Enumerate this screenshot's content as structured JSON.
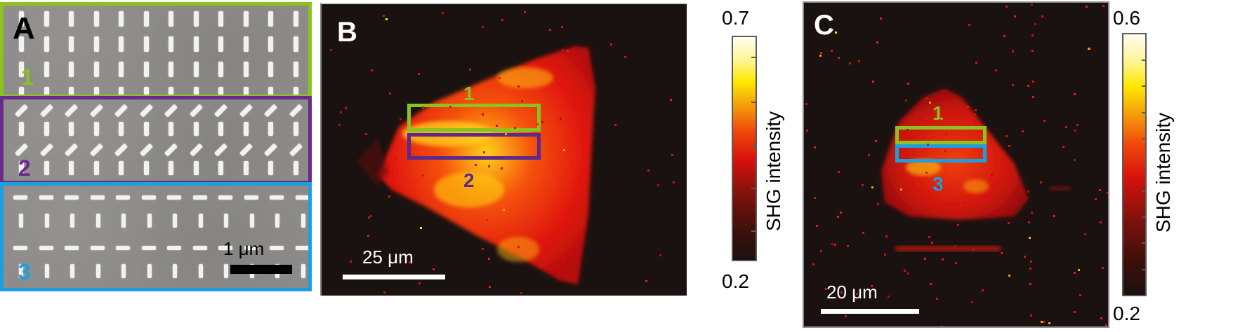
{
  "figure": {
    "panels": [
      {
        "id": "A",
        "label": "A",
        "type": "SEM micrograph",
        "subregions": [
          {
            "label": "1",
            "color": "#8cc21e",
            "pattern": "vertical rods"
          },
          {
            "label": "2",
            "color": "#6a2a8c",
            "pattern": "alternating rows of tilted (45°) and vertical rods"
          },
          {
            "label": "3",
            "color": "#1aa0e0",
            "pattern": "alternating rows of horizontal and vertical rods"
          }
        ],
        "scale_bar": {
          "label": "1 μm"
        }
      },
      {
        "id": "B",
        "label": "B",
        "type": "SHG intensity map",
        "rois": [
          {
            "label": "1",
            "color": "#8cc21e"
          },
          {
            "label": "2",
            "color": "#5a2a8c"
          }
        ],
        "scale_bar": {
          "label": "25 μm"
        },
        "colorbar": {
          "max": "0.7",
          "min": "0.2",
          "title": "SHG intensity"
        }
      },
      {
        "id": "C",
        "label": "C",
        "type": "SHG intensity map",
        "rois": [
          {
            "label": "1",
            "color": "#8cc21e"
          },
          {
            "label": "3",
            "color": "#1aa0e0"
          }
        ],
        "scale_bar": {
          "label": "20 μm"
        },
        "colorbar": {
          "max": "0.6",
          "min": "0.2",
          "title": "SHG intensity"
        }
      }
    ]
  }
}
